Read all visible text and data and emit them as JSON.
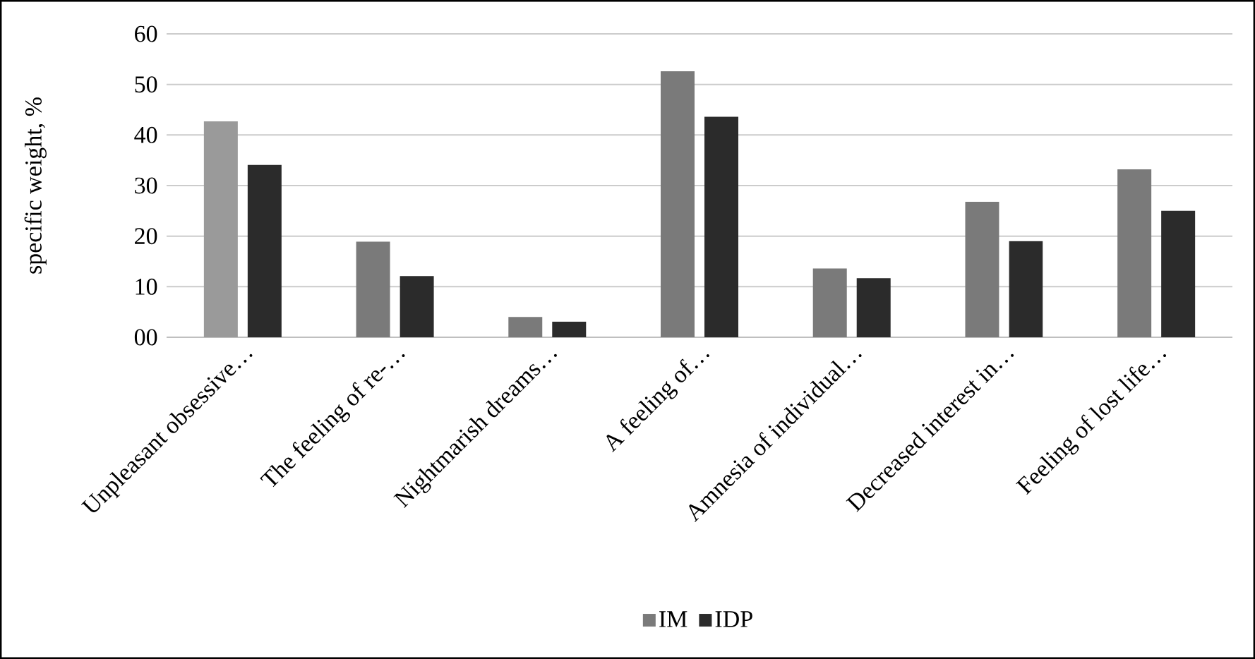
{
  "chart_data": {
    "type": "bar",
    "ylabel": "specific weight, %",
    "categories": [
      "Unpleasant obsessive…",
      "The feeling of re-…",
      "Nightmarish dreams…",
      "A feeling of…",
      "Amnesia of individual…",
      "Decreased interest in…",
      "Feeling of lost life…"
    ],
    "series": [
      {
        "name": "IM",
        "color": "#7a7a7a",
        "colors": [
          "#9a9a9a",
          "#7a7a7a",
          "#7a7a7a",
          "#7a7a7a",
          "#7a7a7a",
          "#7a7a7a",
          "#7a7a7a"
        ],
        "values": [
          42.7,
          18.9,
          4.0,
          52.6,
          13.6,
          26.8,
          33.2
        ]
      },
      {
        "name": "IDP",
        "color": "#2b2b2b",
        "values": [
          34.1,
          12.1,
          3.1,
          43.6,
          11.7,
          19.0,
          25.0
        ]
      }
    ],
    "ylim": [
      0,
      60
    ],
    "yticks": [
      {
        "value": 0,
        "label": "00"
      },
      10,
      20,
      30,
      40,
      50,
      60
    ],
    "grid": "y",
    "legend": "bottom"
  }
}
